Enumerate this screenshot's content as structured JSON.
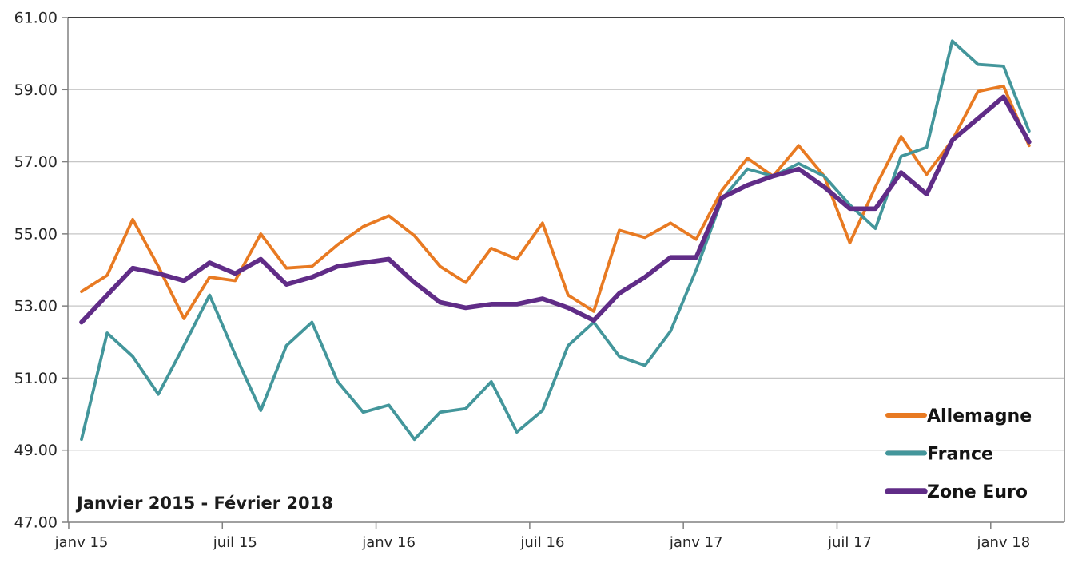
{
  "chart_data": {
    "type": "line",
    "title_annotation": "Janvier 2015 - Février 2018",
    "x_months": [
      "2015-01",
      "2015-02",
      "2015-03",
      "2015-04",
      "2015-05",
      "2015-06",
      "2015-07",
      "2015-08",
      "2015-09",
      "2015-10",
      "2015-11",
      "2015-12",
      "2016-01",
      "2016-02",
      "2016-03",
      "2016-04",
      "2016-05",
      "2016-06",
      "2016-07",
      "2016-08",
      "2016-09",
      "2016-10",
      "2016-11",
      "2016-12",
      "2017-01",
      "2017-02",
      "2017-03",
      "2017-04",
      "2017-05",
      "2017-06",
      "2017-07",
      "2017-08",
      "2017-09",
      "2017-10",
      "2017-11",
      "2017-12",
      "2018-01",
      "2018-02"
    ],
    "x_tick_labels": [
      "janv 15",
      "juil 15",
      "janv 16",
      "juil 16",
      "janv 17",
      "juil 17",
      "janv 18"
    ],
    "y_ticks": [
      "47.00",
      "49.00",
      "51.00",
      "53.00",
      "55.00",
      "57.00",
      "59.00",
      "61.00"
    ],
    "ylim": [
      47,
      61
    ],
    "y_tick_step": 2,
    "grid": "horizontal",
    "legend_position": "inside-right",
    "plot_background": "#FFFFFF",
    "style": {
      "grid_color": "#C6C6C6",
      "axis_color": "#808080",
      "top_border_color": "#3F3F3F",
      "text_color": "#262626"
    },
    "series": [
      {
        "name": "Allemagne",
        "color": "#E87A22",
        "line_width": 3.8,
        "values": [
          53.4,
          53.85,
          55.4,
          54.1,
          52.65,
          53.8,
          53.7,
          55.0,
          54.05,
          54.1,
          54.7,
          55.2,
          55.5,
          54.95,
          54.1,
          53.65,
          54.6,
          54.3,
          55.3,
          53.3,
          52.85,
          55.1,
          54.9,
          55.3,
          54.85,
          56.2,
          57.1,
          56.6,
          57.45,
          56.6,
          54.75,
          56.3,
          57.7,
          56.65,
          57.6,
          58.95,
          59.1,
          57.45
        ]
      },
      {
        "name": "France",
        "color": "#43969B",
        "line_width": 3.8,
        "values": [
          49.3,
          52.25,
          51.6,
          50.55,
          51.9,
          53.3,
          51.65,
          50.1,
          51.9,
          52.55,
          50.9,
          50.05,
          50.25,
          49.3,
          50.05,
          50.15,
          50.9,
          49.5,
          50.1,
          51.9,
          52.55,
          51.6,
          51.35,
          52.3,
          54.0,
          55.95,
          56.8,
          56.6,
          56.95,
          56.6,
          55.8,
          55.15,
          57.15,
          57.4,
          60.35,
          59.7,
          59.65,
          57.85
        ]
      },
      {
        "name": "Zone Euro",
        "color": "#602C87",
        "line_width": 5.7,
        "values": [
          52.55,
          53.3,
          54.05,
          53.9,
          53.7,
          54.2,
          53.9,
          54.3,
          53.6,
          53.8,
          54.1,
          54.2,
          54.3,
          53.65,
          53.1,
          52.95,
          53.05,
          53.05,
          53.2,
          52.95,
          52.6,
          53.35,
          53.8,
          54.35,
          54.35,
          56.0,
          56.35,
          56.6,
          56.8,
          56.3,
          55.7,
          55.7,
          56.7,
          56.1,
          57.6,
          58.2,
          58.8,
          57.55
        ]
      }
    ]
  }
}
